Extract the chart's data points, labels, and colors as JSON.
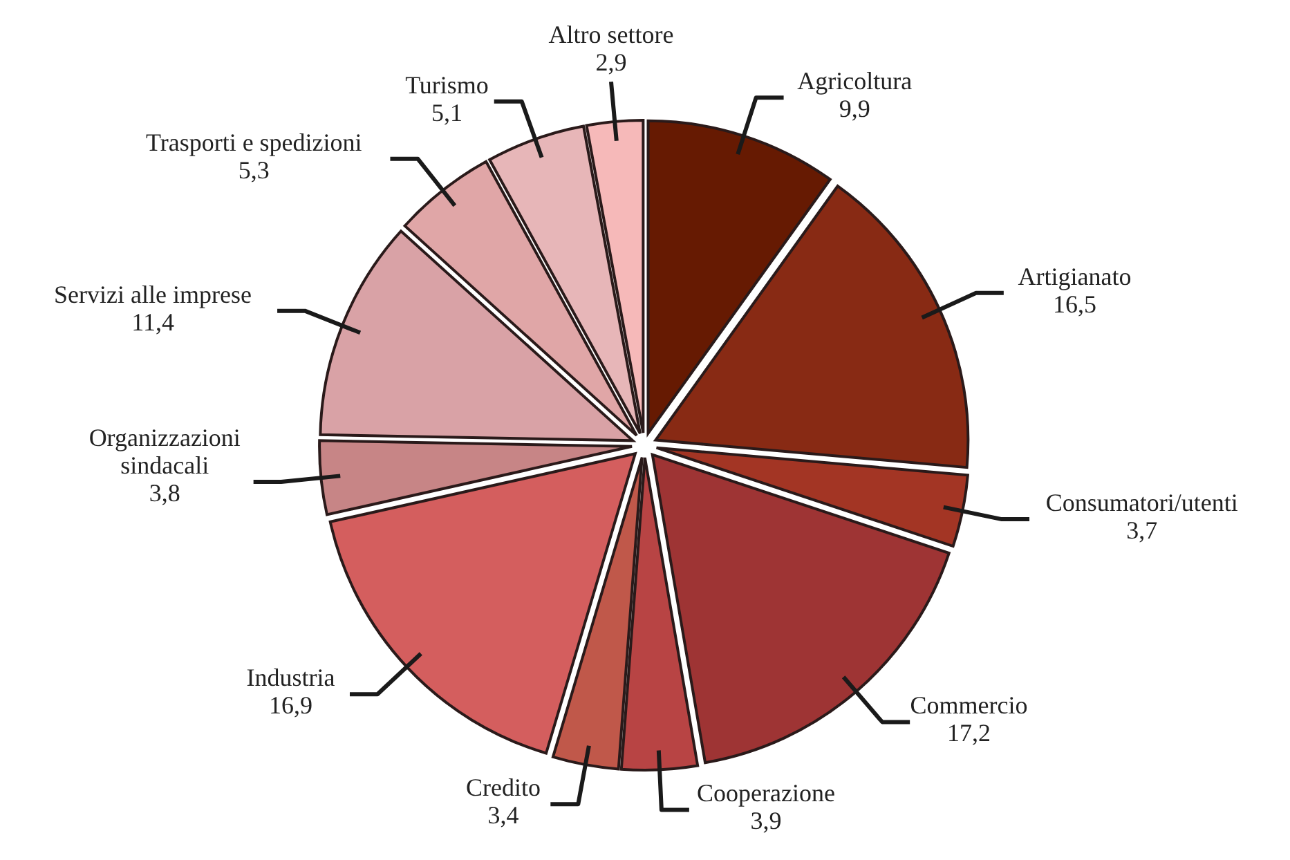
{
  "chart_data": {
    "type": "pie",
    "categories": [
      "Agricoltura",
      "Artigianato",
      "Consumatori/utenti",
      "Commercio",
      "Cooperazione",
      "Credito",
      "Industria",
      "Organizzazioni\nsindacali",
      "Servizi alle imprese",
      "Trasporti e spedizioni",
      "Turismo",
      "Altro settore"
    ],
    "values": [
      9.9,
      16.5,
      3.7,
      17.2,
      3.9,
      3.4,
      16.9,
      3.8,
      11.4,
      5.3,
      5.1,
      2.9
    ],
    "value_labels": [
      "9,9",
      "16,5",
      "3,7",
      "17,2",
      "3,9",
      "3,4",
      "16,9",
      "3,8",
      "11,4",
      "5,3",
      "5,1",
      "2,9"
    ],
    "colors": [
      "#661a02",
      "#882a14",
      "#a33524",
      "#9e3434",
      "#b84444",
      "#c0584a",
      "#d45e5e",
      "#c78586",
      "#d9a2a6",
      "#e0a6a7",
      "#e7b6b8",
      "#f6b9b9"
    ]
  }
}
